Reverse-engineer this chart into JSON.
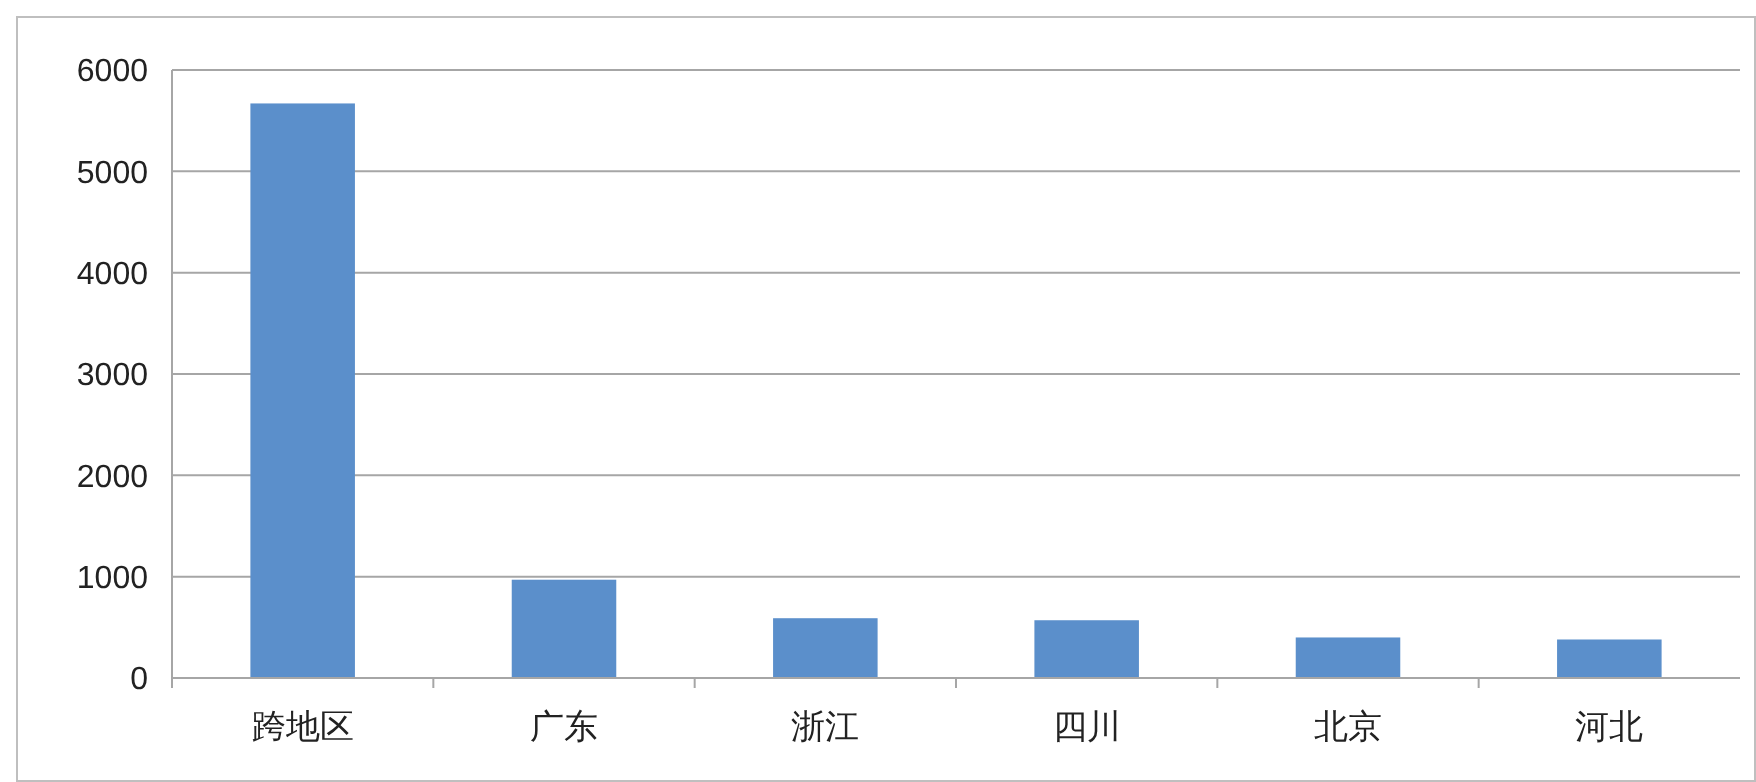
{
  "chart_data": {
    "type": "bar",
    "categories": [
      "跨地区",
      "广东",
      "浙江",
      "四川",
      "北京",
      "河北"
    ],
    "values": [
      5670,
      970,
      590,
      570,
      400,
      380
    ],
    "color": "#5b8fcb",
    "ylim": [
      0,
      6000
    ],
    "yticks": [
      0,
      1000,
      2000,
      3000,
      4000,
      5000,
      6000
    ],
    "grid": "y"
  }
}
